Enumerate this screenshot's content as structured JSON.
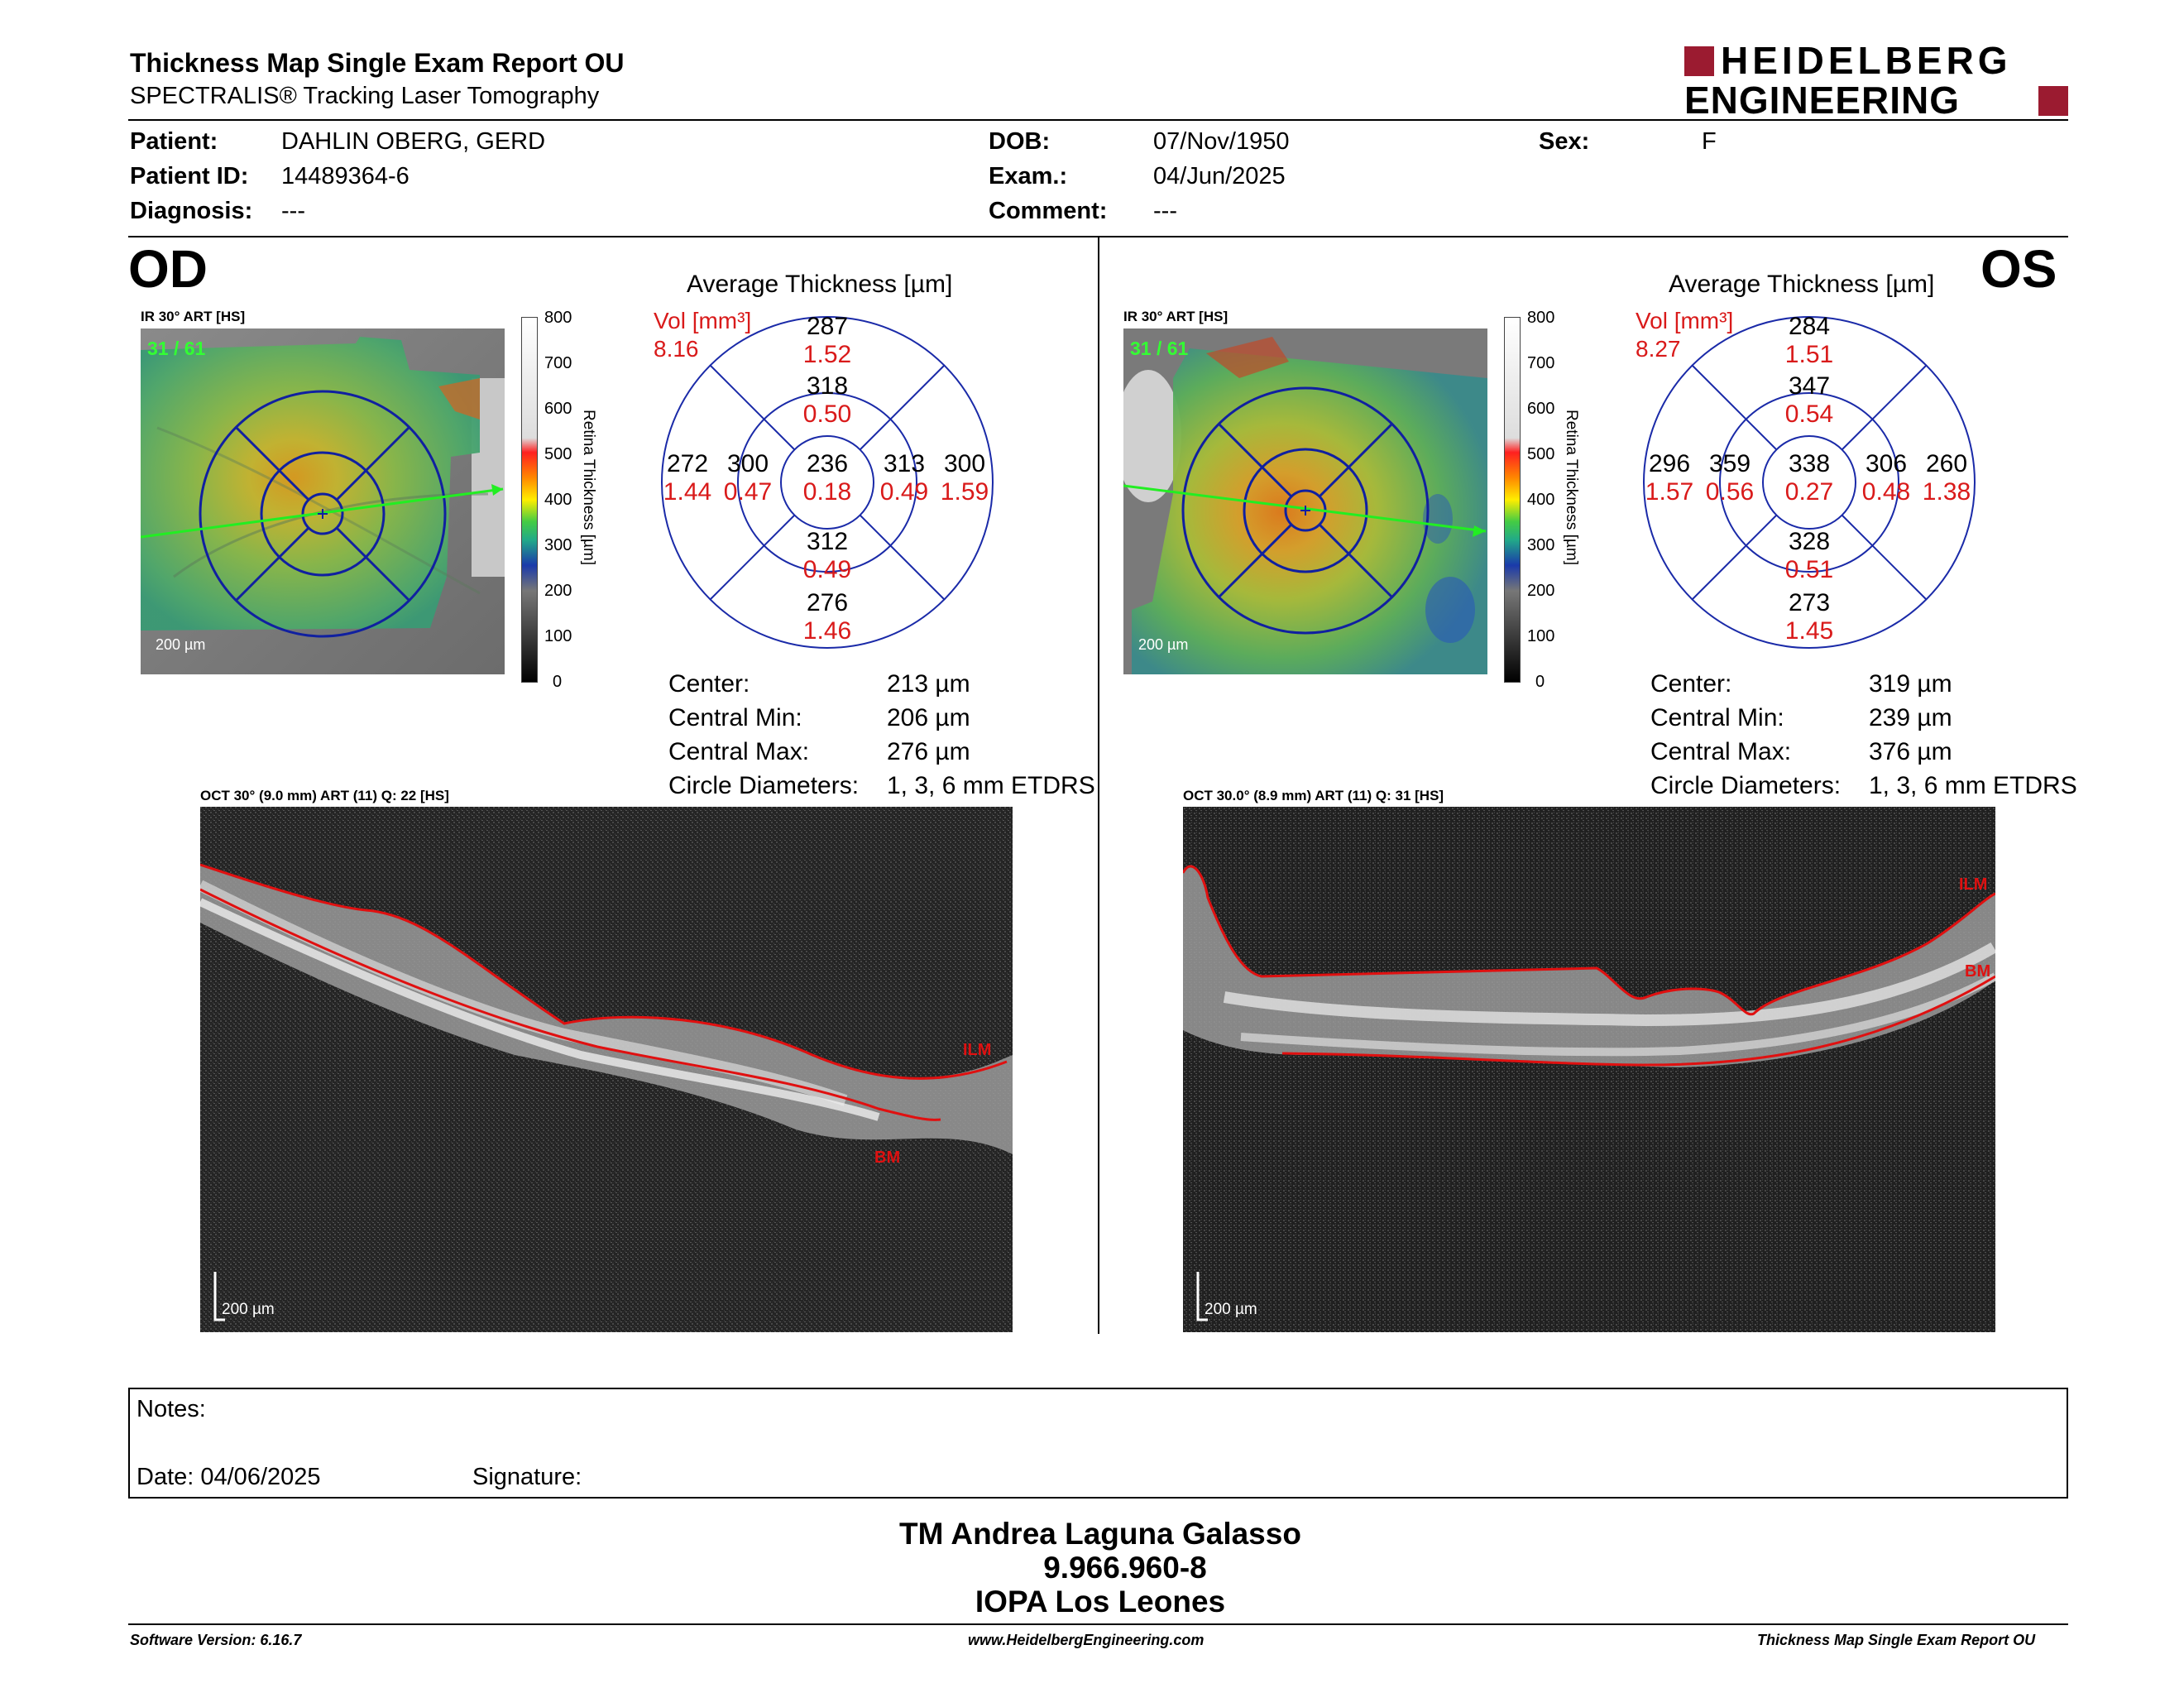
{
  "header": {
    "title": "Thickness Map Single Exam Report OU",
    "subtitle": "SPECTRALIS® Tracking Laser Tomography",
    "logo_line1": "HEIDELBERG",
    "logo_line2": "ENGINEERING"
  },
  "patient": {
    "patient_label": "Patient:",
    "patient_value": "DAHLIN OBERG, GERD",
    "id_label": "Patient ID:",
    "id_value": "14489364-6",
    "diagnosis_label": "Diagnosis:",
    "diagnosis_value": "---",
    "dob_label": "DOB:",
    "dob_value": "07/Nov/1950",
    "exam_label": "Exam.:",
    "exam_value": "04/Jun/2025",
    "comment_label": "Comment:",
    "comment_value": "---",
    "sex_label": "Sex:",
    "sex_value": "F"
  },
  "od": {
    "eye": "OD",
    "ir_label": "IR 30° ART [HS]",
    "frame": "31 / 61",
    "scale": "200 µm",
    "colorbar_ticks": [
      "800",
      "700",
      "600",
      "500",
      "400",
      "300",
      "200",
      "100",
      "0"
    ],
    "colorbar_title": "Retina  Thickness [µm]",
    "avg_title": "Average Thickness [µm]",
    "vol_label": "Vol [mm³]",
    "vol_total": "8.16",
    "sectors": {
      "center": {
        "t": "236",
        "v": "0.18"
      },
      "inner_sup": {
        "t": "318",
        "v": "0.50"
      },
      "inner_inf": {
        "t": "312",
        "v": "0.49"
      },
      "inner_left": {
        "t": "300",
        "v": "0.47"
      },
      "inner_right": {
        "t": "313",
        "v": "0.49"
      },
      "outer_sup": {
        "t": "287",
        "v": "1.52"
      },
      "outer_inf": {
        "t": "276",
        "v": "1.46"
      },
      "outer_left": {
        "t": "272",
        "v": "1.44"
      },
      "outer_right": {
        "t": "300",
        "v": "1.59"
      }
    },
    "stats": [
      {
        "label": "Center:",
        "value": "213 µm"
      },
      {
        "label": "Central Min:",
        "value": "206 µm"
      },
      {
        "label": "Central Max:",
        "value": "276 µm"
      },
      {
        "label": "Circle Diameters:",
        "value": "1, 3, 6 mm ETDRS"
      }
    ],
    "oct_label": "OCT 30° (9.0 mm) ART (11) Q: 22 [HS]",
    "oct_scale": "200 µm",
    "ilm": "ILM",
    "bm": "BM"
  },
  "os": {
    "eye": "OS",
    "ir_label": "IR 30° ART [HS]",
    "frame": "31 / 61",
    "scale": "200 µm",
    "colorbar_ticks": [
      "800",
      "700",
      "600",
      "500",
      "400",
      "300",
      "200",
      "100",
      "0"
    ],
    "colorbar_title": "Retina  Thickness [µm]",
    "avg_title": "Average Thickness [µm]",
    "vol_label": "Vol [mm³]",
    "vol_total": "8.27",
    "sectors": {
      "center": {
        "t": "338",
        "v": "0.27"
      },
      "inner_sup": {
        "t": "347",
        "v": "0.54"
      },
      "inner_inf": {
        "t": "328",
        "v": "0.51"
      },
      "inner_left": {
        "t": "359",
        "v": "0.56"
      },
      "inner_right": {
        "t": "306",
        "v": "0.48"
      },
      "outer_sup": {
        "t": "284",
        "v": "1.51"
      },
      "outer_inf": {
        "t": "273",
        "v": "1.45"
      },
      "outer_left": {
        "t": "296",
        "v": "1.57"
      },
      "outer_right": {
        "t": "260",
        "v": "1.38"
      }
    },
    "stats": [
      {
        "label": "Center:",
        "value": "319 µm"
      },
      {
        "label": "Central Min:",
        "value": "239 µm"
      },
      {
        "label": "Central Max:",
        "value": "376 µm"
      },
      {
        "label": "Circle Diameters:",
        "value": "1, 3, 6 mm ETDRS"
      }
    ],
    "oct_label": "OCT 30.0° (8.9 mm) ART (11) Q: 31 [HS]",
    "oct_scale": "200 µm",
    "ilm": "ILM",
    "bm": "BM"
  },
  "notes": {
    "notes_label": "Notes:",
    "date_label": "Date: 04/06/2025",
    "signature_label": "Signature:"
  },
  "signature": {
    "name": "TM Andrea Laguna Galasso",
    "id": "9.966.960-8",
    "org": "IOPA Los Leones"
  },
  "footer": {
    "version": "Software Version: 6.16.7",
    "url": "www.HeidelbergEngineering.com",
    "report": "Thickness Map Single Exam Report OU"
  },
  "colors": {
    "accent_red": "#d91a1a",
    "logo_red": "#9b1b30",
    "grid_blue": "#1a2aa8",
    "frame_green": "#33ff33"
  }
}
